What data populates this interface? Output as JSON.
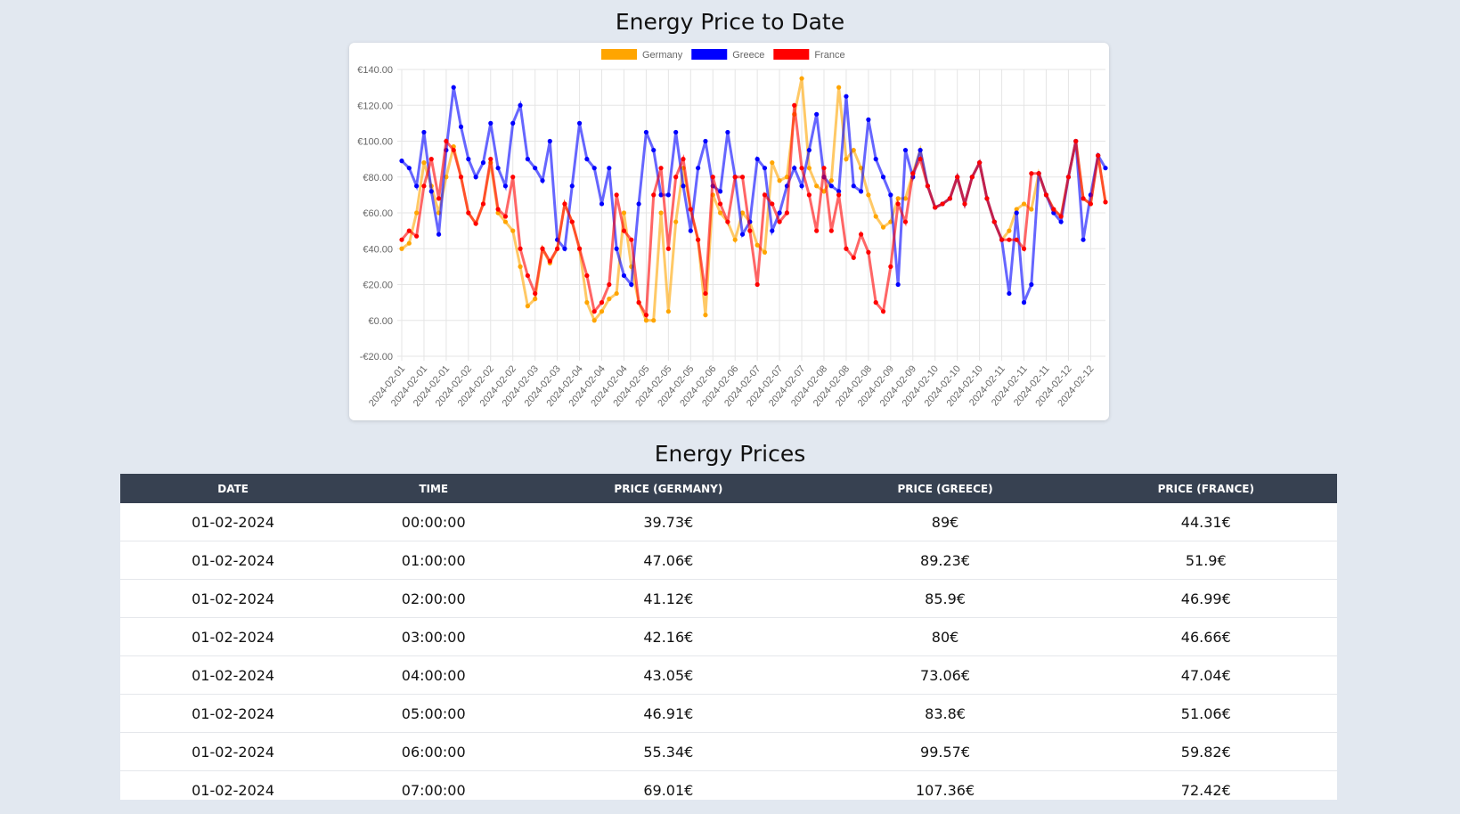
{
  "chart_data": {
    "type": "line",
    "title": "Energy Price to Date",
    "categories": [
      "2024-02-01",
      null,
      null,
      "2024-02-01",
      null,
      null,
      "2024-02-01",
      null,
      null,
      "2024-02-02",
      null,
      null,
      "2024-02-02",
      null,
      null,
      "2024-02-02",
      null,
      null,
      "2024-02-03",
      null,
      null,
      "2024-02-03",
      null,
      null,
      "2024-02-04",
      null,
      null,
      "2024-02-04",
      null,
      null,
      "2024-02-04",
      null,
      null,
      "2024-02-05",
      null,
      null,
      "2024-02-05",
      null,
      null,
      "2024-02-05",
      null,
      null,
      "2024-02-06",
      null,
      null,
      "2024-02-06",
      null,
      null,
      "2024-02-07",
      null,
      null,
      "2024-02-07",
      null,
      null,
      "2024-02-07",
      null,
      null,
      "2024-02-08",
      null,
      null,
      "2024-02-08",
      null,
      null,
      "2024-02-08",
      null,
      null,
      "2024-02-09",
      null,
      null,
      "2024-02-09",
      null,
      null,
      "2024-02-10",
      null,
      null,
      "2024-02-10",
      null,
      null,
      "2024-02-10",
      null,
      null,
      "2024-02-11",
      null,
      null,
      "2024-02-11",
      null,
      null,
      "2024-02-11",
      null,
      null,
      "2024-02-12",
      null,
      null,
      "2024-02-12",
      null,
      null
    ],
    "series": [
      {
        "name": "Germany",
        "color": "#ffa500",
        "values": [
          40,
          43,
          60,
          88,
          75,
          60,
          80,
          97,
          80,
          60,
          54,
          65,
          88,
          60,
          55,
          50,
          30,
          8,
          12,
          40,
          32,
          40,
          65,
          55,
          40,
          10,
          0,
          5,
          12,
          15,
          60,
          30,
          10,
          0,
          0,
          60,
          5,
          55,
          85,
          62,
          45,
          3,
          70,
          60,
          55,
          45,
          60,
          55,
          42,
          38,
          88,
          78,
          80,
          115,
          135,
          85,
          75,
          72,
          78,
          130,
          90,
          95,
          85,
          70,
          58,
          52,
          55,
          68,
          68,
          82,
          95,
          75,
          63,
          65,
          68,
          80,
          65,
          80,
          88,
          68,
          55,
          45,
          50,
          62,
          65,
          62,
          82,
          70,
          62,
          58,
          80,
          100,
          68,
          65,
          92,
          66
        ]
      },
      {
        "name": "Greece",
        "color": "#0000ff",
        "values": [
          89,
          85,
          75,
          105,
          72,
          48,
          95,
          130,
          108,
          90,
          80,
          88,
          110,
          85,
          75,
          110,
          120,
          90,
          85,
          78,
          100,
          45,
          40,
          75,
          110,
          90,
          85,
          65,
          85,
          40,
          25,
          20,
          65,
          105,
          95,
          70,
          70,
          105,
          75,
          50,
          85,
          100,
          75,
          72,
          105,
          80,
          48,
          55,
          90,
          85,
          50,
          60,
          75,
          85,
          75,
          95,
          115,
          80,
          75,
          72,
          125,
          75,
          72,
          112,
          90,
          80,
          70,
          20,
          95,
          80,
          95,
          75,
          63,
          65,
          68,
          80,
          65,
          80,
          88,
          68,
          55,
          45,
          15,
          60,
          10,
          20,
          82,
          70,
          60,
          55,
          80,
          100,
          45,
          70,
          92,
          85
        ]
      },
      {
        "name": "France",
        "color": "#ff0000",
        "values": [
          45,
          50,
          47,
          75,
          90,
          68,
          100,
          95,
          80,
          60,
          54,
          65,
          90,
          62,
          58,
          80,
          40,
          25,
          15,
          40,
          33,
          40,
          65,
          55,
          40,
          25,
          5,
          10,
          20,
          70,
          50,
          45,
          10,
          3,
          70,
          85,
          40,
          80,
          90,
          62,
          45,
          15,
          80,
          65,
          55,
          80,
          80,
          50,
          20,
          70,
          65,
          55,
          60,
          120,
          85,
          70,
          50,
          85,
          50,
          70,
          40,
          35,
          48,
          38,
          10,
          5,
          30,
          65,
          55,
          82,
          90,
          75,
          63,
          65,
          68,
          80,
          65,
          80,
          88,
          68,
          55,
          45,
          45,
          45,
          40,
          82,
          82,
          70,
          62,
          58,
          80,
          100,
          68,
          65,
          92,
          66
        ]
      }
    ],
    "ylim": [
      -20,
      140
    ],
    "yticks": [
      {
        "value": -20,
        "label": "-€20.00"
      },
      {
        "value": 0,
        "label": "€0.00"
      },
      {
        "value": 20,
        "label": "€20.00"
      },
      {
        "value": 40,
        "label": "€40.00"
      },
      {
        "value": 60,
        "label": "€60.00"
      },
      {
        "value": 80,
        "label": "€80.00"
      },
      {
        "value": 100,
        "label": "€100.00"
      },
      {
        "value": 120,
        "label": "€120.00"
      },
      {
        "value": 140,
        "label": "€140.00"
      }
    ],
    "grid": true,
    "legend": "top"
  },
  "table": {
    "title": "Energy Prices",
    "header": [
      "DATE",
      "TIME",
      "PRICE (GERMANY)",
      "PRICE (GREECE)",
      "PRICE (FRANCE)"
    ],
    "rows": [
      [
        "01-02-2024",
        "00:00:00",
        "39.73€",
        "89€",
        "44.31€"
      ],
      [
        "01-02-2024",
        "01:00:00",
        "47.06€",
        "89.23€",
        "51.9€"
      ],
      [
        "01-02-2024",
        "02:00:00",
        "41.12€",
        "85.9€",
        "46.99€"
      ],
      [
        "01-02-2024",
        "03:00:00",
        "42.16€",
        "80€",
        "46.66€"
      ],
      [
        "01-02-2024",
        "04:00:00",
        "43.05€",
        "73.06€",
        "47.04€"
      ],
      [
        "01-02-2024",
        "05:00:00",
        "46.91€",
        "83.8€",
        "51.06€"
      ],
      [
        "01-02-2024",
        "06:00:00",
        "55.34€",
        "99.57€",
        "59.82€"
      ],
      [
        "01-02-2024",
        "07:00:00",
        "69.01€",
        "107.36€",
        "72.42€"
      ]
    ]
  }
}
